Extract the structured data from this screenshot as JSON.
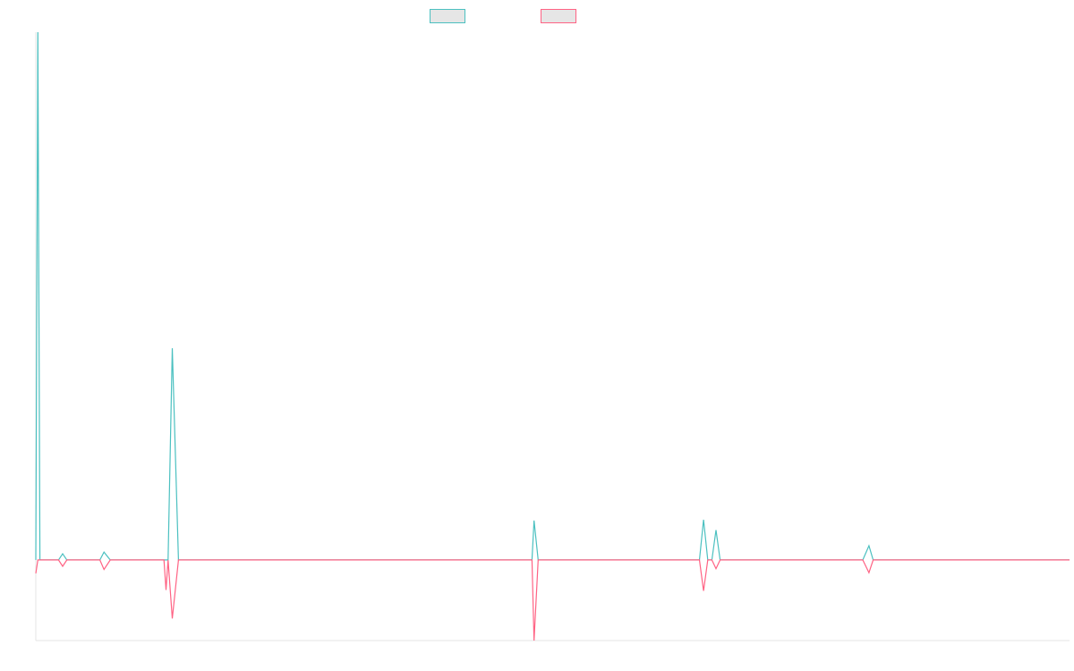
{
  "chart_data": {
    "type": "line",
    "title": "",
    "xlabel": "",
    "ylabel": "",
    "legend_position": "top-center",
    "grid": false,
    "ylim": [
      -102,
      668
    ],
    "series": [
      {
        "name": "",
        "color": "#4bc0c0",
        "points": [
          [
            0,
            0
          ],
          [
            1,
            668
          ],
          [
            2,
            0
          ],
          [
            11,
            0
          ],
          [
            13,
            8
          ],
          [
            15,
            0
          ],
          [
            31,
            0
          ],
          [
            33,
            10
          ],
          [
            36,
            0
          ],
          [
            40,
            0
          ],
          [
            45,
            0
          ],
          [
            49,
            0
          ],
          [
            64,
            0
          ],
          [
            66,
            268
          ],
          [
            69,
            0
          ],
          [
            94,
            0
          ],
          [
            100,
            0
          ],
          [
            140,
            0
          ],
          [
            240,
            0
          ],
          [
            241,
            50
          ],
          [
            243,
            0
          ],
          [
            321,
            0
          ],
          [
            323,
            51
          ],
          [
            325,
            0
          ],
          [
            327,
            0
          ],
          [
            329,
            38
          ],
          [
            331,
            0
          ],
          [
            400,
            0
          ],
          [
            403,
            18
          ],
          [
            405,
            0
          ],
          [
            412,
            0
          ],
          [
            424,
            0
          ],
          [
            500,
            0
          ]
        ]
      },
      {
        "name": "",
        "color": "#ff6384",
        "points": [
          [
            0,
            -17
          ],
          [
            1,
            0
          ],
          [
            2,
            0
          ],
          [
            11,
            0
          ],
          [
            13,
            -8
          ],
          [
            15,
            0
          ],
          [
            31,
            0
          ],
          [
            33,
            -12
          ],
          [
            36,
            0
          ],
          [
            40,
            0
          ],
          [
            45,
            0
          ],
          [
            49,
            0
          ],
          [
            62,
            0
          ],
          [
            63,
            -38
          ],
          [
            64,
            0
          ],
          [
            66,
            -74
          ],
          [
            69,
            0
          ],
          [
            94,
            0
          ],
          [
            100,
            0
          ],
          [
            140,
            0
          ],
          [
            240,
            0
          ],
          [
            241,
            -102
          ],
          [
            243,
            0
          ],
          [
            321,
            0
          ],
          [
            323,
            -39
          ],
          [
            325,
            0
          ],
          [
            327,
            0
          ],
          [
            329,
            -11
          ],
          [
            331,
            0
          ],
          [
            400,
            0
          ],
          [
            403,
            -16
          ],
          [
            405,
            0
          ],
          [
            412,
            0
          ],
          [
            424,
            0
          ],
          [
            500,
            0
          ]
        ]
      }
    ]
  }
}
